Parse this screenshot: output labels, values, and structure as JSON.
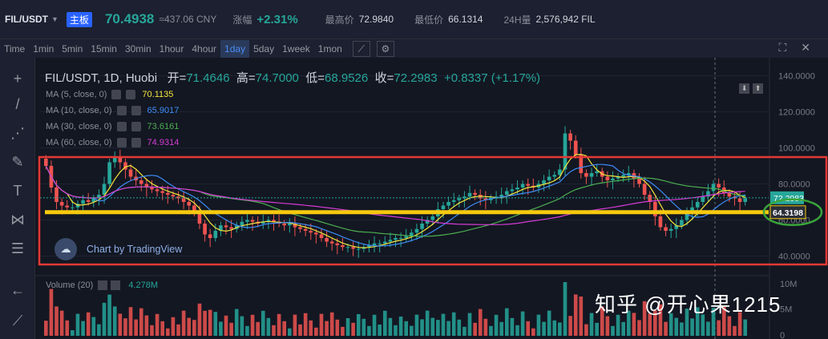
{
  "ticker": {
    "symbol": "FIL/USDT",
    "badge": "主板",
    "price": "70.4938",
    "cny": "≈437.06 CNY",
    "change_label": "涨幅",
    "change": "+2.31%",
    "high_label": "最高价",
    "high": "72.9840",
    "low_label": "最低价",
    "low": "66.1314",
    "vol_label": "24H量",
    "vol": "2,576,942 FIL"
  },
  "toolbar": {
    "timeframes": [
      "Time",
      "1min",
      "5min",
      "15min",
      "30min",
      "1hour",
      "4hour",
      "1day",
      "5day",
      "1week",
      "1mon"
    ],
    "active": "1day"
  },
  "legend": {
    "title": "FIL/USDT, 1D, Huobi",
    "open_label": "开=",
    "open": "71.4646",
    "high_label": "高=",
    "high": "74.7000",
    "low_label": "低=",
    "low": "68.9526",
    "close_label": "收=",
    "close": "72.2983",
    "change": "+0.8337 (+1.17%)"
  },
  "ma": [
    {
      "label": "MA (5, close, 0)",
      "value": "70.1135",
      "color": "#f5e63b"
    },
    {
      "label": "MA (10, close, 0)",
      "value": "65.9017",
      "color": "#3d8bf5"
    },
    {
      "label": "MA (30, close, 0)",
      "value": "73.6161",
      "color": "#4caf50"
    },
    {
      "label": "MA (60, close, 0)",
      "value": "74.9314",
      "color": "#d63bd6"
    }
  ],
  "watermark": "Chart by TradingView",
  "volume": {
    "label": "Volume (20)",
    "value": "4.278M"
  },
  "axis": {
    "price_ticks": [
      "140.0000",
      "120.0000",
      "100.0000",
      "80.0000",
      "60.0000",
      "40.0000"
    ],
    "current_label": "72.2983",
    "marked_label": "64.3198",
    "vol_ticks": [
      "10M",
      "5M",
      "0"
    ]
  },
  "credit": "知乎 @开心果1215",
  "chart_data": {
    "type": "candlestick",
    "title": "FIL/USDT, 1D, Huobi",
    "ylim": [
      40,
      140
    ],
    "series": [
      {
        "name": "MA (5, close, 0)",
        "color": "#f5e63b"
      },
      {
        "name": "MA (10, close, 0)",
        "color": "#3d8bf5"
      },
      {
        "name": "MA (30, close, 0)",
        "color": "#4caf50"
      },
      {
        "name": "MA (60, close, 0)",
        "color": "#d63bd6"
      }
    ],
    "closes": [
      90,
      78,
      70,
      68,
      67,
      67,
      69,
      71,
      70,
      72,
      74,
      80,
      92,
      95,
      92,
      88,
      84,
      82,
      80,
      78,
      77,
      76,
      75,
      74,
      73,
      72,
      70,
      68,
      64,
      58,
      52,
      50,
      54,
      57,
      56,
      55,
      57,
      59,
      60,
      59,
      58,
      59,
      60,
      59,
      58,
      57,
      58,
      56,
      55,
      54,
      53,
      52,
      50,
      48,
      47,
      46,
      45,
      45,
      44,
      44,
      45,
      46,
      47,
      47,
      48,
      49,
      50,
      50,
      51,
      53,
      55,
      58,
      60,
      62,
      66,
      68,
      70,
      71,
      72,
      73,
      75,
      74,
      72,
      71,
      72,
      73,
      74,
      76,
      77,
      78,
      80,
      79,
      78,
      80,
      82,
      84,
      85,
      88,
      108,
      104,
      96,
      86,
      84,
      86,
      87,
      84,
      82,
      83,
      84,
      85,
      86,
      83,
      80,
      74,
      70,
      62,
      56,
      54,
      55,
      57,
      60,
      64,
      67,
      70,
      73,
      76,
      80,
      78,
      75,
      73,
      72,
      70,
      72
    ],
    "annotation_level": 64.3198,
    "current": 72.2983,
    "volume_ticks": [
      "10M",
      "5M",
      "0"
    ],
    "colors": {
      "up": "#26a69a",
      "down": "#ef5350"
    }
  }
}
